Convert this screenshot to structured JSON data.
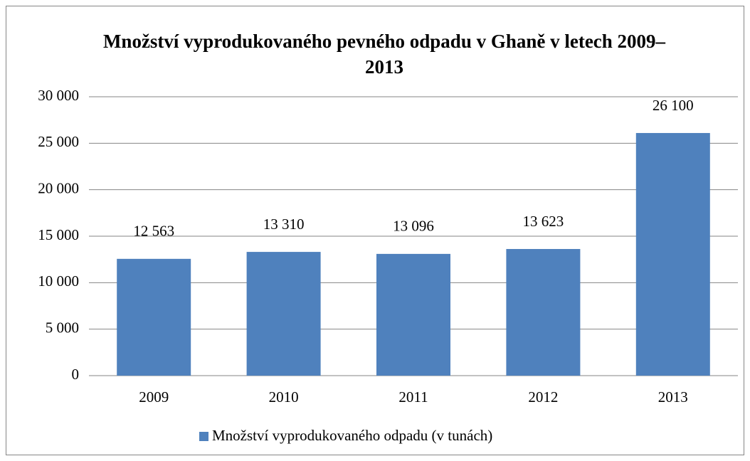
{
  "chart_data": {
    "type": "bar",
    "title": "Množství vyprodukovaného pevného odpadu v Ghaně v letech 2009–2013",
    "categories": [
      "2009",
      "2010",
      "2011",
      "2012",
      "2013"
    ],
    "series": [
      {
        "name": "Množství vyprodukovaného odpadu (v tunách)",
        "color": "#4f81bd",
        "values": [
          12563,
          13310,
          13096,
          13623,
          26100
        ],
        "value_labels": [
          "12 563",
          "13 310",
          "13 096",
          "13 623",
          "26 100"
        ]
      }
    ],
    "ylim": [
      0,
      30000
    ],
    "yticks": [
      0,
      {
        "value": 5000,
        "label": "5 000"
      },
      {
        "value": 10000,
        "label": "10 000"
      },
      {
        "value": 15000,
        "label": "15 000"
      },
      {
        "value": 20000,
        "label": "20 000"
      },
      {
        "value": 25000,
        "label": "25 000"
      },
      {
        "value": 30000,
        "label": "30 000"
      }
    ],
    "grid": true,
    "legend": "bottom"
  }
}
